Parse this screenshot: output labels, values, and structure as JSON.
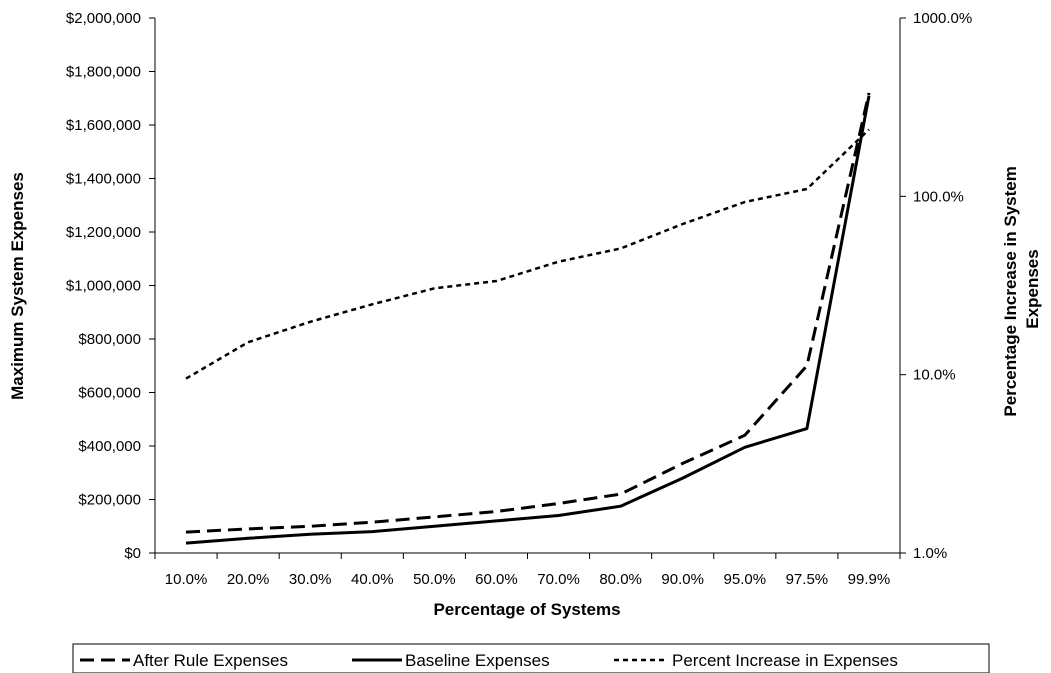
{
  "chart_data": {
    "type": "line",
    "title": "",
    "xlabel": "Percentage of Systems",
    "ylabel": "Maximum System Expenses",
    "y2label_lines": [
      "Percentage Increase in System",
      "Expenses"
    ],
    "categories": [
      "10.0%",
      "20.0%",
      "30.0%",
      "40.0%",
      "50.0%",
      "60.0%",
      "70.0%",
      "80.0%",
      "90.0%",
      "95.0%",
      "97.5%",
      "99.9%"
    ],
    "ylim": [
      0,
      2000000
    ],
    "y_ticks": [
      0,
      200000,
      400000,
      600000,
      800000,
      1000000,
      1200000,
      1400000,
      1600000,
      1800000,
      2000000
    ],
    "y_tick_labels": [
      "$0",
      "$200,000",
      "$400,000",
      "$600,000",
      "$800,000",
      "$1,000,000",
      "$1,200,000",
      "$1,400,000",
      "$1,600,000",
      "$1,800,000",
      "$2,000,000"
    ],
    "y2_scale": "log",
    "y2lim": [
      1,
      1000
    ],
    "y2_ticks": [
      1,
      10,
      100,
      1000
    ],
    "y2_tick_labels": [
      "1.0%",
      "10.0%",
      "100.0%",
      "1000.0%"
    ],
    "grid": false,
    "legend_position": "bottom",
    "series": [
      {
        "name": "After Rule Expenses",
        "axis": "left",
        "style": "long-dash",
        "values": [
          78000,
          90000,
          100000,
          115000,
          135000,
          155000,
          185000,
          220000,
          335000,
          440000,
          700000,
          1720000
        ]
      },
      {
        "name": "Baseline Expenses",
        "axis": "left",
        "style": "solid",
        "values": [
          37000,
          55000,
          70000,
          80000,
          100000,
          120000,
          140000,
          175000,
          280000,
          395000,
          465000,
          1710000
        ]
      },
      {
        "name": "Percent Increase in Expenses",
        "axis": "right",
        "style": "short-dash",
        "values": [
          9.5,
          15.2,
          19.8,
          24.8,
          30.5,
          33.5,
          43,
          51,
          70,
          93,
          110,
          237
        ]
      }
    ]
  }
}
